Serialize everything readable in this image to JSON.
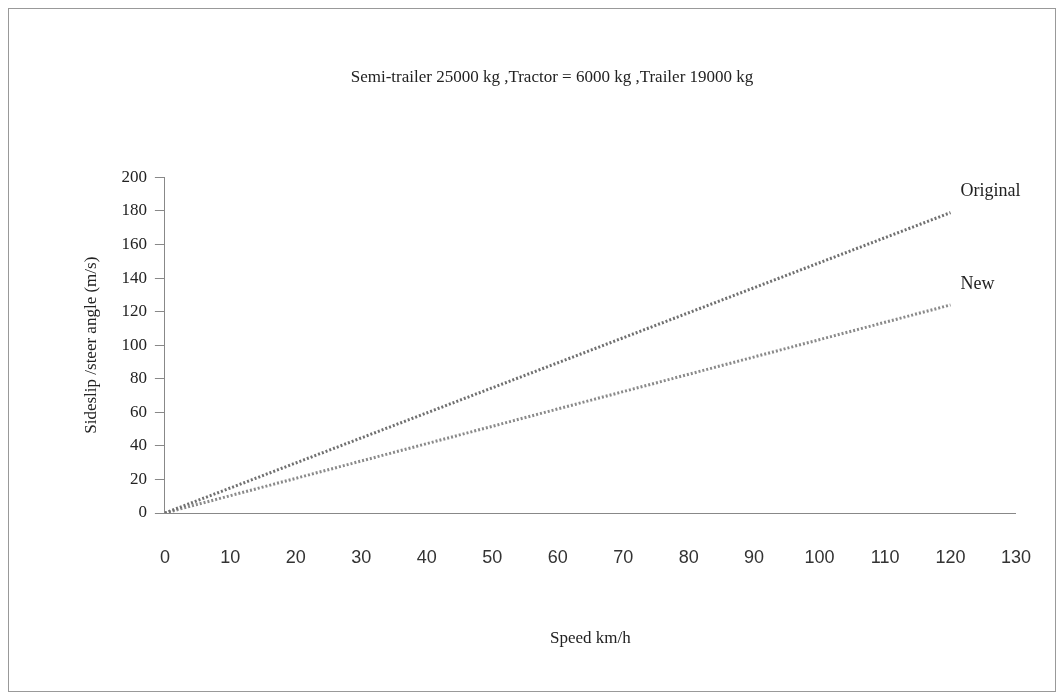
{
  "chart_data": {
    "type": "line",
    "title": "Semi-trailer 25000 kg ,Tractor = 6000 kg ,Trailer 19000 kg",
    "xlabel": "Speed km/h",
    "ylabel": "Sideslip /steer angle (m/s)",
    "x": [
      0,
      120
    ],
    "series": [
      {
        "name": "Original",
        "color": "#707070",
        "values": [
          0,
          179
        ]
      },
      {
        "name": "New",
        "color": "#8a8a8a",
        "values": [
          0,
          124
        ]
      }
    ],
    "xlim": [
      0,
      130
    ],
    "xticks": [
      0,
      10,
      20,
      30,
      40,
      50,
      60,
      70,
      80,
      90,
      100,
      110,
      120,
      130
    ],
    "ylim": [
      0,
      200
    ],
    "yticks": [
      0,
      20,
      40,
      60,
      80,
      100,
      120,
      140,
      160,
      180,
      200
    ],
    "grid": false,
    "legend": false,
    "marker": "none",
    "line_style": "dotted"
  }
}
